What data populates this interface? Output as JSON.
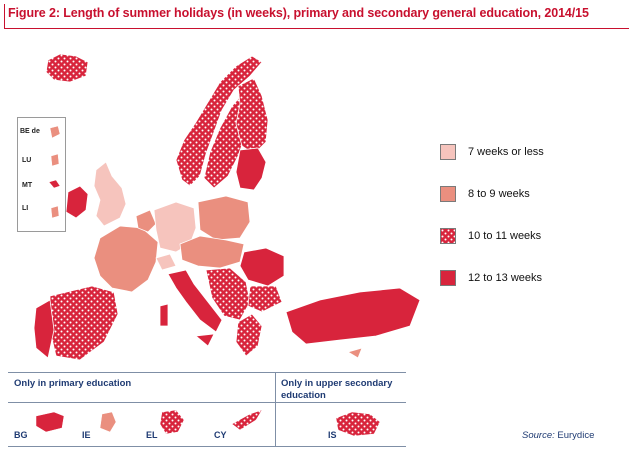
{
  "title": "Figure 2: Length of summer holidays (in weeks), primary and secondary general education,  2014/15",
  "colors": {
    "c7": "#f6c4bd",
    "c8": "#ea8f7f",
    "c10": "#d8243c",
    "c12": "#d8243c",
    "title": "#c8102e",
    "section": "#1f3b73"
  },
  "legend": [
    {
      "key": "c7",
      "label": "7 weeks or less",
      "pattern": false
    },
    {
      "key": "c8",
      "label": "8 to 9 weeks",
      "pattern": false
    },
    {
      "key": "c10",
      "label": "10 to 11 weeks",
      "pattern": true
    },
    {
      "key": "c12",
      "label": "12 to 13 weeks",
      "pattern": false
    }
  ],
  "inset_labels": [
    "BE de",
    "LU",
    "MT",
    "LI"
  ],
  "sections": {
    "primary_only": "Only in primary education",
    "upper_secondary_only_line1": "Only in upper secondary",
    "upper_secondary_only_line2": "education"
  },
  "primary_only_countries": [
    "BG",
    "IE",
    "EL",
    "CY"
  ],
  "upper_secondary_countries": [
    "IS"
  ],
  "source_label": "Source:",
  "source_value": "Eurydice"
}
